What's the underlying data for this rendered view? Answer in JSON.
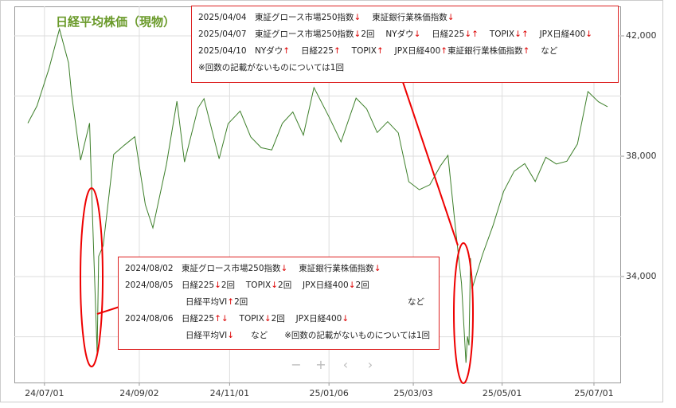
{
  "chart_data": {
    "type": "line",
    "title": "日経平均株価（現物）",
    "series": [
      {
        "name": "日経平均株価",
        "color": "#3d7f2a",
        "x": [
          "2024-06-20",
          "2024-06-26",
          "2024-07-04",
          "2024-07-11",
          "2024-07-17",
          "2024-07-19",
          "2024-07-25",
          "2024-07-31",
          "2024-08-02",
          "2024-08-05",
          "2024-08-06",
          "2024-08-09",
          "2024-08-16",
          "2024-08-23",
          "2024-08-30",
          "2024-09-06",
          "2024-09-11",
          "2024-09-20",
          "2024-09-27",
          "2024-10-02",
          "2024-10-11",
          "2024-10-15",
          "2024-10-25",
          "2024-10-31",
          "2024-11-08",
          "2024-11-15",
          "2024-11-22",
          "2024-11-29",
          "2024-12-06",
          "2024-12-13",
          "2024-12-20",
          "2024-12-27",
          "2025-01-06",
          "2025-01-14",
          "2025-01-24",
          "2025-01-31",
          "2025-02-07",
          "2025-02-14",
          "2025-02-21",
          "2025-02-28",
          "2025-03-07",
          "2025-03-14",
          "2025-03-21",
          "2025-03-26",
          "2025-03-31",
          "2025-04-04",
          "2025-04-07",
          "2025-04-08",
          "2025-04-09",
          "2025-04-10",
          "2025-04-11",
          "2025-04-18",
          "2025-04-25",
          "2025-05-02",
          "2025-05-09",
          "2025-05-16",
          "2025-05-23",
          "2025-05-30",
          "2025-06-06",
          "2025-06-13",
          "2025-06-20",
          "2025-06-27",
          "2025-07-04",
          "2025-07-10"
        ],
        "values": [
          39100,
          39670,
          40910,
          42224,
          41100,
          40060,
          37870,
          39100,
          35909,
          31458,
          34675,
          35025,
          38062,
          38364,
          38647,
          36391,
          35619,
          37723,
          39829,
          37808,
          39605,
          39910,
          37913,
          39081,
          39500,
          38642,
          38283,
          38208,
          39091,
          39470,
          38701,
          40281,
          39307,
          38474,
          39931,
          39572,
          38787,
          39149,
          38776,
          37155,
          36887,
          37053,
          37677,
          38027,
          35617,
          33780,
          31136,
          32013,
          31714,
          34609,
          33586,
          34730,
          35705,
          36830,
          37503,
          37753,
          37160,
          37965,
          37741,
          37834,
          38403,
          40150,
          39810,
          39646
        ]
      }
    ],
    "xlim": [
      "2024-06-11",
      "2025-07-19"
    ],
    "xticks": [
      {
        "value": "2024-07-01",
        "label": "24/07/01"
      },
      {
        "value": "2024-09-02",
        "label": "24/09/02"
      },
      {
        "value": "2024-11-01",
        "label": "24/11/01"
      },
      {
        "value": "2025-01-06",
        "label": "25/01/06"
      },
      {
        "value": "2025-03-03",
        "label": "25/03/03"
      },
      {
        "value": "2025-05-01",
        "label": "25/05/01"
      },
      {
        "value": "2025-07-01",
        "label": "25/07/01"
      }
    ],
    "ylim": [
      30480,
      42980
    ],
    "yticks": [
      {
        "value": 34000,
        "label": "34,000"
      },
      {
        "value": 38000,
        "label": "38,000"
      },
      {
        "value": 42000,
        "label": "42,000"
      }
    ],
    "ygrid_minor": [
      32000,
      36000,
      40000
    ],
    "grid": true,
    "annotations": [
      {
        "rows": [
          {
            "text": "2025/04/04　東証グロース市場250指数↓　 東証銀行業株価指数↓"
          },
          {
            "text": "2025/04/07　東証グロース市場250指数↓2回　 NYダウ↓　 日経225↓↑　 TOPIX↓↑　 JPX日経400↓"
          },
          {
            "text": "2025/04/10　NYダウ↑　 日経225↑　 TOPIX↑　 JPX日経400↑東証銀行業株価指数↑　 など"
          },
          {
            "text": "※回数の記載がないものについては1回"
          }
        ]
      },
      {
        "rows": [
          {
            "text": "2024/08/02　東証グロース市場250指数↓　 東証銀行業株価指数↓"
          },
          {
            "text": "2024/08/05　日経225↓2回　 TOPIX↓2回　 JPX日経400↓2回"
          },
          {
            "text": "日経平均VI↑2回",
            "right": "など"
          },
          {
            "text": "2024/08/06　日経225↑↓　 TOPIX↓2回　 JPX日経400↓"
          },
          {
            "text": "日経平均VI↓　　など　　※回数の記載がないものについては1回"
          }
        ]
      }
    ],
    "controls": [
      "−",
      "+",
      "‹",
      "›"
    ]
  }
}
